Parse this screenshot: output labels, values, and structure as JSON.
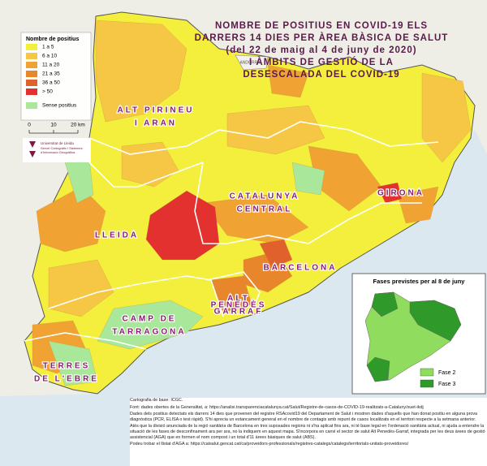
{
  "title": {
    "lines": [
      "NOMBRE DE POSITIUS EN COVID-19 ELS",
      "DARRERS 14 DIES PER ÀREA BÀSICA DE SALUT",
      "(del 22 de maig al 4 de juny de 2020)",
      "I ÀMBITS DE GESTIÓ DE LA",
      "DESESCALADA DEL COVID-19"
    ]
  },
  "legend": {
    "title": "Nombre de positius",
    "items": [
      {
        "label": "1 a 5",
        "color": "#f3ef3c"
      },
      {
        "label": "6 a 10",
        "color": "#f5c744"
      },
      {
        "label": "11 a 20",
        "color": "#f0a232"
      },
      {
        "label": "21 a 35",
        "color": "#e8862c"
      },
      {
        "label": "36 a 50",
        "color": "#e0612c"
      },
      {
        "label": "> 50",
        "color": "#e2312f"
      },
      {
        "label": "Sense positius",
        "color": "#a9e89b"
      }
    ]
  },
  "scale": {
    "labels": [
      "0",
      "10",
      "20 km"
    ]
  },
  "logo": {
    "lines": [
      "Universitat de Lleida",
      "Servei Cartogràfic i Sistemes",
      "d'Informació Geogràfica"
    ]
  },
  "map_labels": [
    "ANDORRA"
  ],
  "regions": [
    {
      "lines": [
        "ALT PIRINEU",
        "I ARAN"
      ]
    },
    {
      "lines": [
        "GIRONA"
      ]
    },
    {
      "lines": [
        "CATALUNYA",
        "CENTRAL"
      ]
    },
    {
      "lines": [
        "LLEIDA"
      ]
    },
    {
      "lines": [
        "BARCELONA"
      ]
    },
    {
      "lines": [
        "ALT",
        "PENEDÈS",
        "GARRAF"
      ]
    },
    {
      "lines": [
        "CAMP DE",
        "TARRAGONA"
      ]
    },
    {
      "lines": [
        "TERRES",
        "DE L'EBRE"
      ]
    }
  ],
  "inset": {
    "title": "Fases previstes per al 8 de juny",
    "items": [
      {
        "label": "Fase 2",
        "color": "#8fdc5e"
      },
      {
        "label": "Fase 3",
        "color": "#2f9a2a"
      }
    ]
  },
  "footer": {
    "lines": [
      "Cartografia de base: ICGC.",
      "Font: dades obertes de la Generalitat, a: https://analisi.transparenciacatalunya.cat/Salut/Registre-de-casos-de-COVID-19-realitzats-a-Cataluny/xuet-ikdj",
      "Dades dels positius detectats els darrers 14 dies que provenen del registre RSAcovid19 del Departament de Salut i mostren dades d'aquells que han donat positiu en alguna prova diagnòstica (PCR, ELISA o test ràpid). S'hi aprecia un estancament general en el nombre de contagis amb repunt de casos localitzats en el territori respecte a la setmana anterior.",
      "Atès que la divisió anunciada de la regió sanitària de Barcelona en tres suposades regions ni s'ha aplicat fins ara, ni té base legal en l'ordenació sanitària actual, ni ajuda a entendre la situació de les fases de desconfinament ara per ara, no la indiquem en aquest mapa. S'incorpora en canvi el sector de salut Alt Penedès-Garraf, integrada per les deus àrees de gestió assistencial (AGA) que en formen el nom compost i un total d'11 àrees bàsiques de salut (ABS).",
      "Podeu trobar el llistat d'AGA a: https://catsalut.gencat.cat/ca/proveidors-professionals/registres-catalegs/catalegs/territorials-unitats-proveidores/"
    ]
  }
}
